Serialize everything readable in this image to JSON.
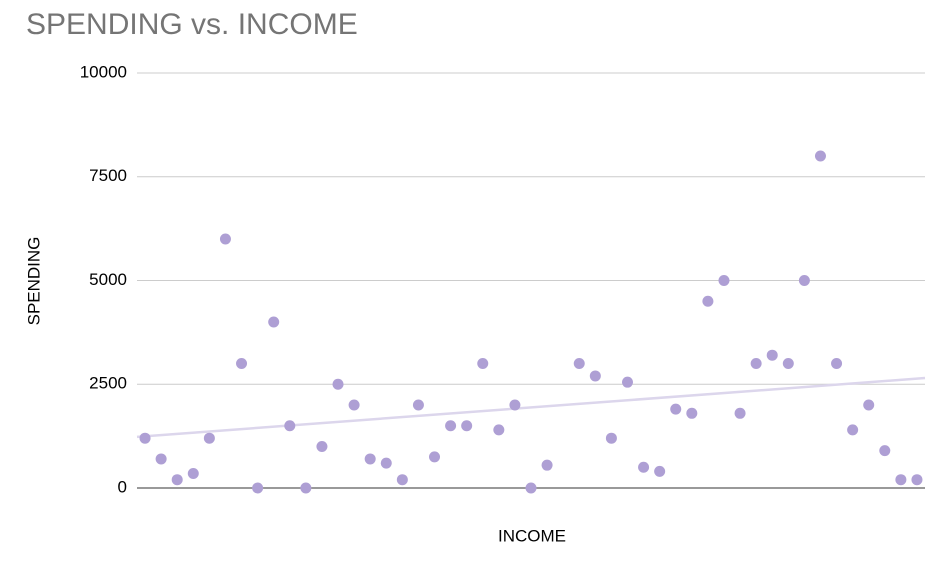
{
  "chart_data": {
    "type": "scatter",
    "title": "SPENDING vs. INCOME",
    "x_label": "INCOME",
    "y_label": "SPENDING",
    "x": [
      1,
      2,
      3,
      4,
      5,
      6,
      7,
      8,
      9,
      10,
      11,
      12,
      13,
      14,
      15,
      16,
      17,
      18,
      19,
      20,
      21,
      22,
      23,
      24,
      25,
      26,
      28,
      29,
      30,
      31,
      32,
      33,
      34,
      35,
      36,
      37,
      38,
      39,
      40,
      41,
      42,
      43,
      44,
      45,
      46,
      47,
      48,
      49
    ],
    "values": [
      1200,
      700,
      200,
      350,
      1200,
      6000,
      3000,
      0,
      4000,
      1500,
      0,
      1000,
      2500,
      2000,
      700,
      600,
      200,
      2000,
      750,
      1500,
      1500,
      3000,
      1400,
      2000,
      0,
      550,
      3000,
      2700,
      1200,
      2550,
      500,
      400,
      1900,
      1800,
      4500,
      5000,
      1800,
      3000,
      3200,
      3000,
      5000,
      8000,
      3000,
      1400,
      2000,
      900,
      200,
      200
    ],
    "color": "#ae9fd4",
    "trendline": true,
    "trendline_color": "#dcd6ec",
    "xlim": [
      0.5,
      49.5
    ],
    "ylim": [
      0,
      10000
    ],
    "yticks": [
      0,
      2500,
      5000,
      7500,
      10000
    ],
    "grid": true
  }
}
